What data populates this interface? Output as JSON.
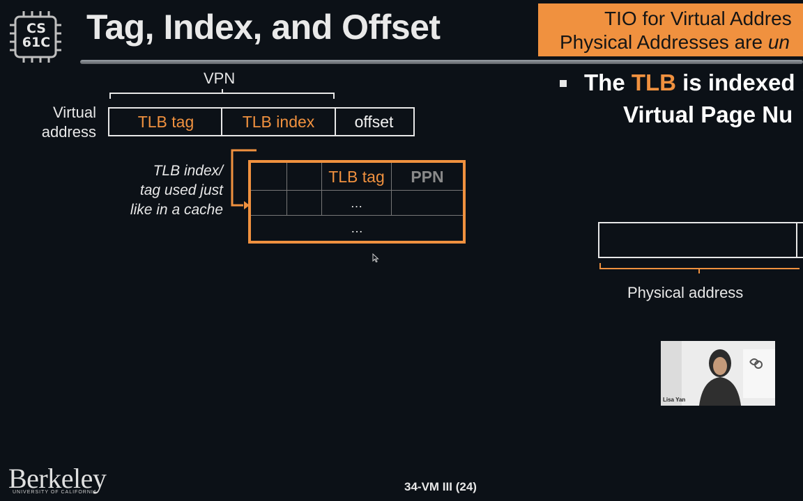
{
  "logo": {
    "line1": "CS",
    "line2": "61C"
  },
  "slide": {
    "title": "Tag, Index, and Offset",
    "callout": {
      "line1": "TIO for Virtual Addres",
      "line2_prefix": "Physical Addresses are ",
      "line2_italic": "un"
    },
    "bullet": {
      "l1_pre": "The ",
      "l1_tlb": "TLB",
      "l1_post": " is indexed b",
      "l2": "Virtual Page Nu"
    },
    "diagram": {
      "vpn_label": "VPN",
      "virtual_address_label_l1": "Virtual",
      "virtual_address_label_l2": "address",
      "field_tag": "TLB tag",
      "field_index": "TLB index",
      "field_offset": "offset",
      "note_l1": "TLB index/",
      "note_l2": "tag used just",
      "note_l3": "like in a cache",
      "table_col_tag": "TLB tag",
      "table_col_ppn": "PPN",
      "ellipsis_1": "…",
      "ellipsis_2": "…"
    },
    "physical_address_label": "Physical address"
  },
  "webcam": {
    "name": "Lisa Yan"
  },
  "footer": {
    "university": "Berkeley",
    "university_sub": "UNIVERSITY OF CALIFORNIA",
    "lecture": "34-VM III",
    "page": "(24)"
  },
  "colors": {
    "accent": "#f0913f",
    "background": "#0c1117",
    "text": "#ffffff",
    "muted": "#8a8a8a"
  }
}
